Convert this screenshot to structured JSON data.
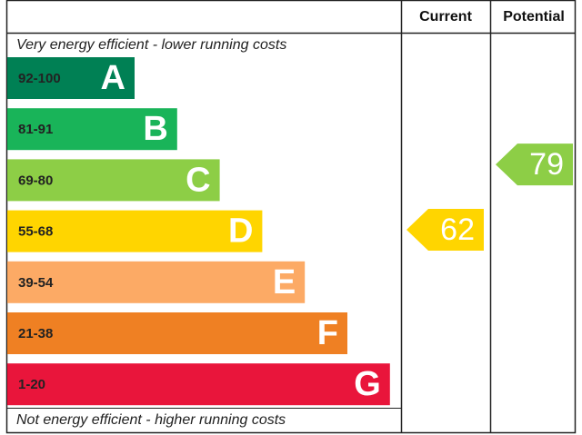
{
  "chart_data": {
    "type": "epc",
    "header": {
      "current": "Current",
      "potential": "Potential"
    },
    "top_note": "Very energy efficient - lower running costs",
    "bottom_note": "Not energy efficient - higher running costs",
    "bands": [
      {
        "range": "92-100",
        "letter": "A",
        "color": "#008054"
      },
      {
        "range": "81-91",
        "letter": "B",
        "color": "#19b459"
      },
      {
        "range": "69-80",
        "letter": "C",
        "color": "#8dce46"
      },
      {
        "range": "55-68",
        "letter": "D",
        "color": "#ffd500"
      },
      {
        "range": "39-54",
        "letter": "E",
        "color": "#fcaa65"
      },
      {
        "range": "21-38",
        "letter": "F",
        "color": "#ef8023"
      },
      {
        "range": "1-20",
        "letter": "G",
        "color": "#e9153b"
      }
    ],
    "current": {
      "value": 62,
      "color": "#ffd500"
    },
    "potential": {
      "value": 79,
      "color": "#8dce46"
    }
  }
}
